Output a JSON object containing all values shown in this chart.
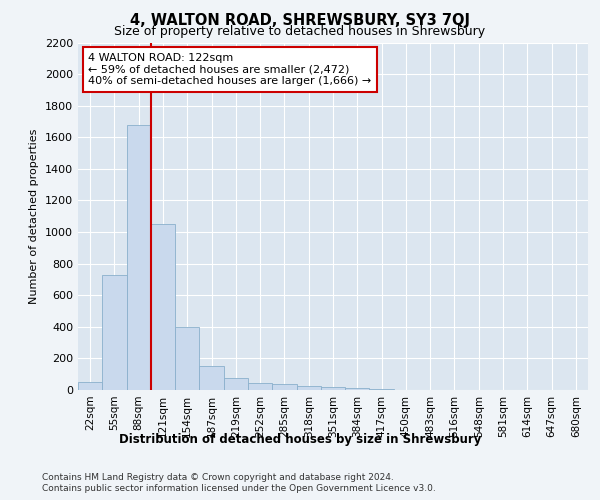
{
  "title": "4, WALTON ROAD, SHREWSBURY, SY3 7QJ",
  "subtitle": "Size of property relative to detached houses in Shrewsbury",
  "xlabel": "Distribution of detached houses by size in Shrewsbury",
  "ylabel": "Number of detached properties",
  "annotation_line1": "4 WALTON ROAD: 122sqm",
  "annotation_line2": "← 59% of detached houses are smaller (2,472)",
  "annotation_line3": "40% of semi-detached houses are larger (1,666) →",
  "footer1": "Contains HM Land Registry data © Crown copyright and database right 2024.",
  "footer2": "Contains public sector information licensed under the Open Government Licence v3.0.",
  "categories": [
    "22sqm",
    "55sqm",
    "88sqm",
    "121sqm",
    "154sqm",
    "187sqm",
    "219sqm",
    "252sqm",
    "285sqm",
    "318sqm",
    "351sqm",
    "384sqm",
    "417sqm",
    "450sqm",
    "483sqm",
    "516sqm",
    "548sqm",
    "581sqm",
    "614sqm",
    "647sqm",
    "680sqm"
  ],
  "values": [
    50,
    730,
    1680,
    1050,
    400,
    150,
    75,
    45,
    35,
    25,
    20,
    10,
    5,
    2,
    1,
    1,
    0,
    0,
    0,
    0,
    0
  ],
  "bar_color": "#c9d9ed",
  "bar_edge_color": "#8ab0cc",
  "vline_color": "#cc0000",
  "ylim": [
    0,
    2200
  ],
  "yticks": [
    0,
    200,
    400,
    600,
    800,
    1000,
    1200,
    1400,
    1600,
    1800,
    2000,
    2200
  ],
  "fig_bg_color": "#f0f4f8",
  "plot_bg_color": "#dce6f0",
  "annotation_box_facecolor": "#ffffff",
  "annotation_box_edgecolor": "#cc0000",
  "title_fontsize": 10.5,
  "subtitle_fontsize": 9,
  "footer_fontsize": 6.5
}
